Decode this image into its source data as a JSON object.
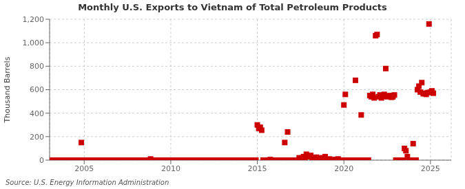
{
  "chart_data": {
    "type": "scatter",
    "title": "Monthly U.S. Exports to Vietnam of Total Petroleum Products",
    "ylabel": "Thousand Barrels",
    "annotations": [
      "Source: U.S. Energy Information Administration"
    ],
    "color": "#cc0000",
    "marker": "square",
    "grid": true,
    "xlim": [
      2003.0,
      2026.2
    ],
    "xticks": [
      2005,
      2010,
      2015,
      2020,
      2025
    ],
    "ylim": [
      0,
      1200
    ],
    "yticks": [
      0,
      200,
      400,
      600,
      800,
      {
        "value": 1000,
        "label": "1,000"
      },
      {
        "value": 1200,
        "label": "1,200"
      }
    ],
    "x": [
      2003.0,
      2003.083,
      2003.167,
      2003.25,
      2003.333,
      2003.417,
      2003.5,
      2003.583,
      2003.667,
      2003.75,
      2003.833,
      2003.917,
      2004.0,
      2004.083,
      2004.167,
      2004.25,
      2004.333,
      2004.417,
      2004.5,
      2004.583,
      2004.667,
      2004.75,
      2004.833,
      2004.917,
      2005.0,
      2005.083,
      2005.167,
      2005.25,
      2005.333,
      2005.417,
      2005.5,
      2005.583,
      2005.667,
      2005.75,
      2005.833,
      2005.917,
      2006.0,
      2006.083,
      2006.167,
      2006.25,
      2006.333,
      2006.417,
      2006.5,
      2006.583,
      2006.667,
      2006.75,
      2006.833,
      2006.917,
      2007.0,
      2007.083,
      2007.167,
      2007.25,
      2007.333,
      2007.417,
      2007.5,
      2007.583,
      2007.667,
      2007.75,
      2007.833,
      2007.917,
      2008.0,
      2008.083,
      2008.167,
      2008.25,
      2008.333,
      2008.417,
      2008.5,
      2008.583,
      2008.667,
      2008.75,
      2008.833,
      2008.917,
      2009.0,
      2009.083,
      2009.167,
      2009.25,
      2009.333,
      2009.417,
      2009.5,
      2009.583,
      2009.667,
      2009.75,
      2009.833,
      2009.917,
      2010.0,
      2010.083,
      2010.167,
      2010.25,
      2010.333,
      2010.417,
      2010.5,
      2010.583,
      2010.667,
      2010.75,
      2010.833,
      2010.917,
      2011.0,
      2011.083,
      2011.167,
      2011.25,
      2011.333,
      2011.417,
      2011.5,
      2011.583,
      2011.667,
      2011.75,
      2011.833,
      2011.917,
      2012.0,
      2012.083,
      2012.167,
      2012.25,
      2012.333,
      2012.417,
      2012.5,
      2012.583,
      2012.667,
      2012.75,
      2012.833,
      2012.917,
      2013.0,
      2013.083,
      2013.167,
      2013.25,
      2013.333,
      2013.417,
      2013.5,
      2013.583,
      2013.667,
      2013.75,
      2013.833,
      2013.917,
      2014.0,
      2014.083,
      2014.167,
      2014.25,
      2014.333,
      2014.417,
      2014.5,
      2014.583,
      2014.667,
      2014.75,
      2014.833,
      2014.917,
      2015.0,
      2015.083,
      2015.167,
      2015.25,
      2015.333,
      2015.417,
      2015.5,
      2015.583,
      2015.667,
      2015.75,
      2015.833,
      2015.917,
      2016.0,
      2016.083,
      2016.167,
      2016.25,
      2016.333,
      2016.417,
      2016.5,
      2016.583,
      2016.667,
      2016.75,
      2016.833,
      2016.917,
      2017.0,
      2017.083,
      2017.167,
      2017.25,
      2017.333,
      2017.417,
      2017.5,
      2017.583,
      2017.667,
      2017.75,
      2017.833,
      2017.917,
      2018.0,
      2018.083,
      2018.167,
      2018.25,
      2018.333,
      2018.417,
      2018.5,
      2018.583,
      2018.667,
      2018.75,
      2018.833,
      2018.917,
      2019.0,
      2019.083,
      2019.167,
      2019.25,
      2019.333,
      2019.417,
      2019.5,
      2019.583,
      2019.667,
      2019.75,
      2019.833,
      2019.917,
      2020.0,
      2020.083,
      2020.167,
      2020.25,
      2020.333,
      2020.417,
      2020.5,
      2020.583,
      2020.667,
      2020.75,
      2020.833,
      2020.917,
      2021.0,
      2021.083,
      2021.167,
      2021.25,
      2021.333,
      2021.417,
      2021.5,
      2021.583,
      2021.667,
      2021.75,
      2021.833,
      2021.917,
      2022.0,
      2022.083,
      2022.167,
      2022.25,
      2022.333,
      2022.417,
      2022.5,
      2022.583,
      2022.667,
      2022.75,
      2022.833,
      2022.917,
      2023.0,
      2023.083,
      2023.167,
      2023.25,
      2023.333,
      2023.417,
      2023.5,
      2023.583,
      2023.667,
      2023.75,
      2023.833,
      2023.917,
      2024.0,
      2024.083,
      2024.167,
      2024.25,
      2024.333,
      2024.417,
      2024.5,
      2024.583,
      2024.667,
      2024.75,
      2024.833,
      2024.917,
      2025.0,
      2025.083,
      2025.167
    ],
    "values": [
      0,
      0,
      0,
      0,
      0,
      0,
      0,
      0,
      0,
      0,
      0,
      0,
      0,
      0,
      0,
      0,
      0,
      0,
      0,
      0,
      0,
      0,
      150,
      0,
      0,
      0,
      0,
      0,
      0,
      0,
      0,
      0,
      0,
      0,
      0,
      0,
      0,
      0,
      0,
      0,
      0,
      0,
      0,
      0,
      0,
      0,
      0,
      0,
      0,
      0,
      0,
      0,
      0,
      0,
      0,
      0,
      0,
      0,
      0,
      0,
      0,
      0,
      0,
      0,
      0,
      0,
      0,
      0,
      0,
      0,
      10,
      0,
      0,
      0,
      0,
      0,
      0,
      0,
      0,
      0,
      0,
      0,
      0,
      0,
      0,
      0,
      0,
      0,
      0,
      0,
      0,
      0,
      0,
      0,
      0,
      0,
      0,
      0,
      0,
      0,
      0,
      0,
      0,
      0,
      0,
      0,
      0,
      0,
      0,
      0,
      0,
      0,
      0,
      0,
      0,
      0,
      0,
      0,
      0,
      0,
      0,
      0,
      0,
      0,
      0,
      0,
      0,
      0,
      0,
      0,
      0,
      0,
      0,
      0,
      0,
      0,
      0,
      0,
      0,
      0,
      0,
      0,
      0,
      0,
      300,
      270,
      280,
      255,
      0,
      0,
      0,
      0,
      0,
      5,
      0,
      0,
      0,
      0,
      0,
      0,
      0,
      0,
      0,
      150,
      0,
      240,
      0,
      0,
      0,
      0,
      0,
      0,
      0,
      20,
      0,
      0,
      30,
      15,
      50,
      30,
      30,
      40,
      20,
      10,
      20,
      25,
      15,
      10,
      0,
      20,
      10,
      30,
      0,
      5,
      10,
      0,
      0,
      5,
      0,
      5,
      10,
      0,
      0,
      0,
      470,
      560,
      0,
      0,
      0,
      0,
      0,
      0,
      680,
      0,
      0,
      0,
      385,
      0,
      0,
      0,
      0,
      0,
      550,
      540,
      560,
      530,
      1060,
      1070,
      540,
      555,
      530,
      545,
      560,
      780,
      540,
      545,
      550,
      535,
      540,
      555,
      0,
      0,
      0,
      0,
      0,
      0,
      100,
      80,
      30,
      0,
      0,
      0,
      140,
      0,
      0,
      600,
      630,
      580,
      660,
      565,
      570,
      560,
      575,
      1160,
      580,
      590,
      570
    ]
  }
}
